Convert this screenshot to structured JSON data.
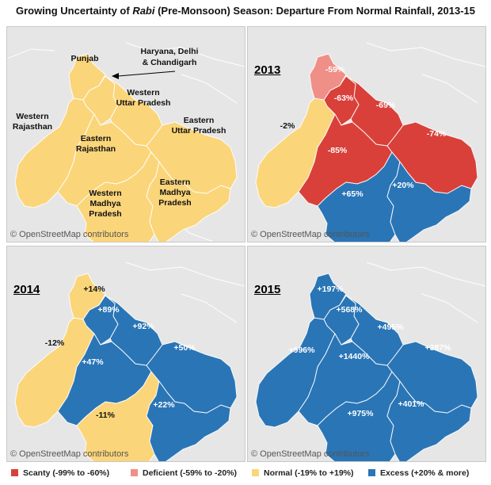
{
  "title_prefix": "Growing Uncertainty of ",
  "title_italic": "Rabi",
  "title_suffix": " (Pre-Monsoon) Season: Departure From Normal Rainfall, 2013-15",
  "attribution": "© OpenStreetMap contributors",
  "colors": {
    "scanty": "#d9403a",
    "deficient": "#f08f87",
    "normal": "#fbd57a",
    "excess": "#2a75b6",
    "land": "#e6e6e6",
    "border": "#ffffff"
  },
  "regions_panel": {
    "labels": {
      "punjab": "Punjab",
      "haryana_1": "Haryana, Delhi",
      "haryana_2": "& Chandigarh",
      "wup_1": "Western",
      "wup_2": "Uttar Pradesh",
      "eup_1": "Eastern",
      "eup_2": "Uttar Pradesh",
      "wraj_1": "Western",
      "wraj_2": "Rajasthan",
      "eraj_1": "Eastern",
      "eraj_2": "Rajasthan",
      "wmp_1": "Western",
      "wmp_2": "Madhya",
      "wmp_3": "Pradesh",
      "emp_1": "Eastern",
      "emp_2": "Madhya",
      "emp_3": "Pradesh"
    }
  },
  "panel_2013": {
    "year": "2013",
    "values": {
      "punjab": "-59%",
      "haryana": "-63%",
      "wup": "-69%",
      "eup": "-74%",
      "wraj": "-2%",
      "eraj": "-85%",
      "wmp": "+65%",
      "emp": "+20%"
    }
  },
  "panel_2014": {
    "year": "2014",
    "values": {
      "punjab": "+14%",
      "haryana": "+89%",
      "wup": "+92%",
      "eup": "+50%",
      "wraj": "-12%",
      "eraj": "+47%",
      "wmp": "-11%",
      "emp": "+22%"
    }
  },
  "panel_2015": {
    "year": "2015",
    "values": {
      "punjab": "+197%",
      "haryana": "+568%",
      "wup": "+495%",
      "eup": "+387%",
      "wraj": "+996%",
      "eraj": "+1440%",
      "wmp": "+975%",
      "emp": "+401%"
    }
  },
  "legend": [
    {
      "label": "Scanty (-99% to -60%)",
      "color": "#d9403a"
    },
    {
      "label": "Deficient (-59% to -20%)",
      "color": "#f08f87"
    },
    {
      "label": "Normal (-19% to +19%)",
      "color": "#fbd57a"
    },
    {
      "label": "Excess (+20% & more)",
      "color": "#2a75b6"
    }
  ]
}
